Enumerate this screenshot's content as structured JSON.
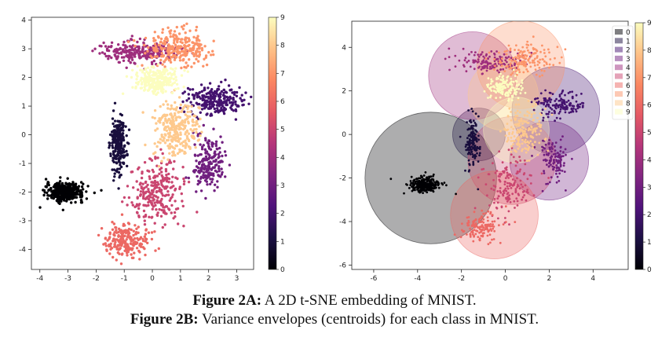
{
  "captions": {
    "a_label": "Figure 2A:",
    "a_text": " A 2D t-SNE embedding of MNIST.",
    "b_label": "Figure 2B:",
    "b_text": " Variance envelopes (centroids) for each class in MNIST."
  },
  "colorscale": [
    "#000004",
    "#1c1044",
    "#4f127b",
    "#812581",
    "#b5367a",
    "#e55964",
    "#fb8761",
    "#fec287",
    "#fcfdbf"
  ],
  "chart_data": [
    {
      "type": "scatter",
      "xlim": [
        -4.3,
        3.6
      ],
      "ylim": [
        -4.7,
        4.1
      ],
      "xticks": [
        "-4",
        "-3",
        "-2",
        "-1",
        "0",
        "1",
        "2",
        "3"
      ],
      "yticks": [
        "-4",
        "-3",
        "-2",
        "-1",
        "0",
        "1",
        "2",
        "3",
        "4"
      ],
      "colorbar": {
        "range": [
          0,
          9
        ],
        "ticks": [
          "0",
          "1",
          "2",
          "3",
          "4",
          "5",
          "6",
          "7",
          "8",
          "9"
        ]
      },
      "clusters": [
        {
          "label": 0,
          "cx": -3.1,
          "cy": -2.0,
          "rx": 0.6,
          "ry": 0.28,
          "n": 420
        },
        {
          "label": 1,
          "cx": -1.2,
          "cy": -0.3,
          "rx": 0.25,
          "ry": 0.9,
          "n": 240
        },
        {
          "label": 2,
          "cx": 2.2,
          "cy": 1.2,
          "rx": 0.9,
          "ry": 0.45,
          "n": 240
        },
        {
          "label": 3,
          "cx": 2.0,
          "cy": -1.0,
          "rx": 0.5,
          "ry": 0.8,
          "n": 200
        },
        {
          "label": 4,
          "cx": -0.5,
          "cy": 2.9,
          "rx": 1.2,
          "ry": 0.35,
          "n": 240
        },
        {
          "label": 5,
          "cx": 0.2,
          "cy": -2.0,
          "rx": 0.9,
          "ry": 1.0,
          "n": 260
        },
        {
          "label": 6,
          "cx": -0.9,
          "cy": -3.7,
          "rx": 0.7,
          "ry": 0.5,
          "n": 220
        },
        {
          "label": 7,
          "cx": 0.9,
          "cy": 3.0,
          "rx": 1.0,
          "ry": 0.55,
          "n": 260
        },
        {
          "label": 8,
          "cx": 0.8,
          "cy": 0.2,
          "rx": 0.7,
          "ry": 0.9,
          "n": 280
        },
        {
          "label": 9,
          "cx": 0.1,
          "cy": 1.9,
          "rx": 0.7,
          "ry": 0.45,
          "n": 240
        }
      ]
    },
    {
      "type": "scatter",
      "xlim": [
        -7,
        5.6
      ],
      "ylim": [
        -6.2,
        5.2
      ],
      "xticks": [
        "-6",
        "-4",
        "-2",
        "0",
        "2",
        "4"
      ],
      "yticks": [
        "-6",
        "-4",
        "-2",
        "0",
        "2",
        "4"
      ],
      "colorbar": {
        "range": [
          0,
          9
        ],
        "ticks": [
          "0",
          "1",
          "2",
          "3",
          "4",
          "5",
          "6",
          "7",
          "8",
          "9"
        ]
      },
      "legend": {
        "entries": [
          "0",
          "1",
          "2",
          "3",
          "4",
          "5",
          "6",
          "7",
          "8",
          "9"
        ],
        "placement": "top-right"
      },
      "envelopes": [
        {
          "label": 0,
          "cx": -3.4,
          "cy": -2.0,
          "r": 3.0
        },
        {
          "label": 1,
          "cx": -1.2,
          "cy": 0.0,
          "r": 1.2
        },
        {
          "label": 2,
          "cx": 2.3,
          "cy": 1.1,
          "r": 2.0
        },
        {
          "label": 3,
          "cx": 2.0,
          "cy": -1.2,
          "r": 1.8
        },
        {
          "label": 4,
          "cx": -1.5,
          "cy": 2.7,
          "r": 2.0
        },
        {
          "label": 5,
          "cx": 0.3,
          "cy": -1.2,
          "r": 2.0
        },
        {
          "label": 6,
          "cx": -0.5,
          "cy": -3.7,
          "r": 2.0
        },
        {
          "label": 7,
          "cx": 0.7,
          "cy": 3.2,
          "r": 2.0
        },
        {
          "label": 8,
          "cx": -0.1,
          "cy": 1.8,
          "r": 1.6
        },
        {
          "label": 9,
          "cx": 0.5,
          "cy": 0.2,
          "r": 1.5
        }
      ]
    }
  ]
}
